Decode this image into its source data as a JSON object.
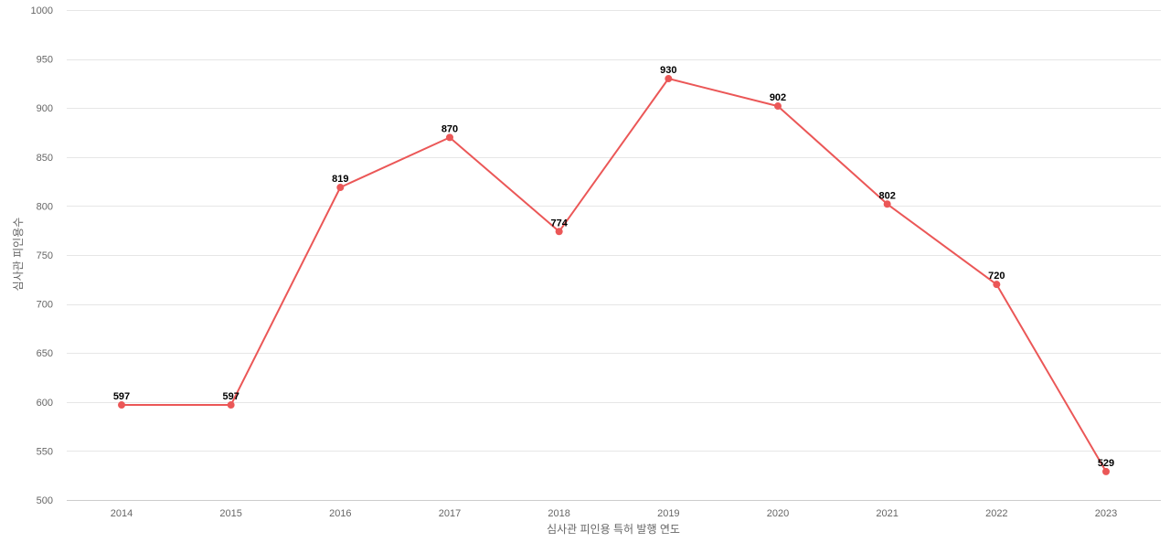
{
  "chart_data": {
    "type": "line",
    "title": "",
    "xlabel": "심사관 피인용 특허 발행 연도",
    "ylabel": "심사관 피인용수",
    "categories": [
      "2014",
      "2015",
      "2016",
      "2017",
      "2018",
      "2019",
      "2020",
      "2021",
      "2022",
      "2023"
    ],
    "series": [
      {
        "values": [
          597,
          597,
          819,
          870,
          774,
          930,
          902,
          802,
          720,
          529
        ],
        "color": "#eb5757"
      }
    ],
    "ylim": [
      500,
      1000
    ],
    "yticks": [
      500,
      550,
      600,
      650,
      700,
      750,
      800,
      850,
      900,
      950,
      1000
    ],
    "grid": true,
    "legend": "none",
    "data_labels": true,
    "colors": {
      "line": "#eb5757",
      "grid": "#e6e6e6",
      "axis_text": "#666666",
      "label_text": "#000000"
    }
  }
}
